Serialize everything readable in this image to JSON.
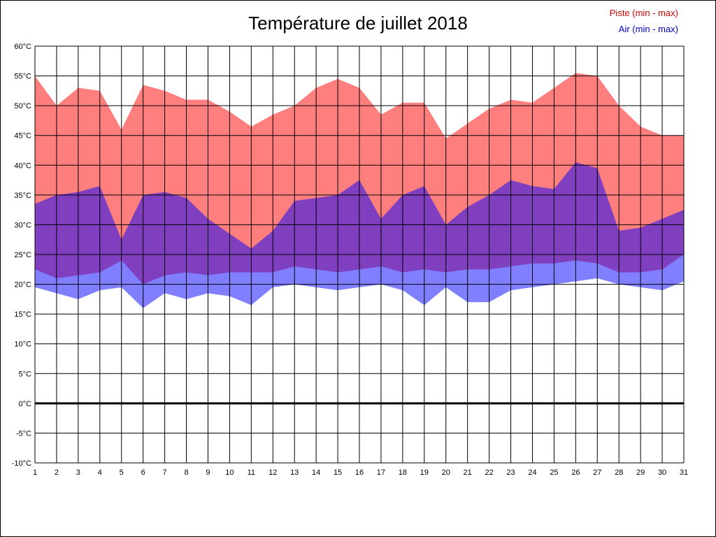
{
  "title": "Température de juillet 2018",
  "legend": {
    "piste_label": "Piste (min - max)",
    "air_label": "Air (min - max)"
  },
  "colors": {
    "piste": "#ff0000",
    "air": "#0000ff",
    "grid": "#000000",
    "zero_line": "#000000",
    "legend_piste_text": "#d40000",
    "legend_air_text": "#0000d4"
  },
  "chart_data": {
    "type": "area",
    "title": "Température de juillet 2018",
    "xlabel": "",
    "ylabel": "",
    "x": [
      1,
      2,
      3,
      4,
      5,
      6,
      7,
      8,
      9,
      10,
      11,
      12,
      13,
      14,
      15,
      16,
      17,
      18,
      19,
      20,
      21,
      22,
      23,
      24,
      25,
      26,
      27,
      28,
      29,
      30,
      31
    ],
    "x_tick_labels": [
      "1",
      "2",
      "3",
      "4",
      "5",
      "6",
      "7",
      "8",
      "9",
      "10",
      "11",
      "12",
      "13",
      "14",
      "15",
      "16",
      "17",
      "18",
      "19",
      "20",
      "21",
      "22",
      "23",
      "24",
      "25",
      "26",
      "27",
      "28",
      "29",
      "30",
      "31"
    ],
    "ylim": [
      -10,
      60
    ],
    "ytick_step": 5,
    "y_tick_labels": [
      "60°C",
      "55°C",
      "50°C",
      "45°C",
      "40°C",
      "35°C",
      "30°C",
      "25°C",
      "20°C",
      "15°C",
      "10°C",
      "5°C",
      "0°C",
      "-5°C",
      "-10°C"
    ],
    "grid": true,
    "legend_position": "top-right",
    "series": [
      {
        "name": "Piste (min - max)",
        "color": "#ff0000",
        "fill_opacity": 0.5,
        "max": [
          55,
          50,
          53,
          52.5,
          46,
          53.5,
          52.5,
          51,
          51,
          49,
          46.5,
          48.5,
          50,
          53,
          54.5,
          53,
          48.5,
          50.5,
          50.5,
          44.5,
          47,
          49.5,
          51,
          50.5,
          53,
          55.5,
          55,
          50,
          46.5,
          45,
          45
        ],
        "min": [
          22.5,
          21,
          21.5,
          22,
          24,
          20,
          21.5,
          22,
          21.5,
          22,
          22,
          22,
          23,
          22.5,
          22,
          22.5,
          23,
          22,
          22.5,
          22,
          22.5,
          22.5,
          23,
          23.5,
          23.5,
          24,
          23.5,
          22,
          22,
          22.5,
          25
        ]
      },
      {
        "name": "Air (min - max)",
        "color": "#0000ff",
        "fill_opacity": 0.5,
        "max": [
          33.5,
          35,
          35.5,
          36.5,
          27.5,
          35,
          35.5,
          34.5,
          31,
          28.5,
          26,
          29,
          34,
          34.5,
          35,
          37.5,
          31,
          35,
          36.5,
          30,
          33,
          35,
          37.5,
          36.5,
          36,
          40.5,
          39.5,
          29,
          29.5,
          31,
          32.5
        ],
        "min": [
          19.5,
          18.5,
          17.5,
          19,
          19.5,
          16,
          18.5,
          17.5,
          18.5,
          18,
          16.5,
          19.5,
          20,
          19.5,
          19,
          19.5,
          20,
          19,
          16.5,
          19.5,
          17,
          17,
          19,
          19.5,
          20,
          20.5,
          21,
          20,
          19.5,
          19,
          20.5
        ]
      }
    ]
  }
}
